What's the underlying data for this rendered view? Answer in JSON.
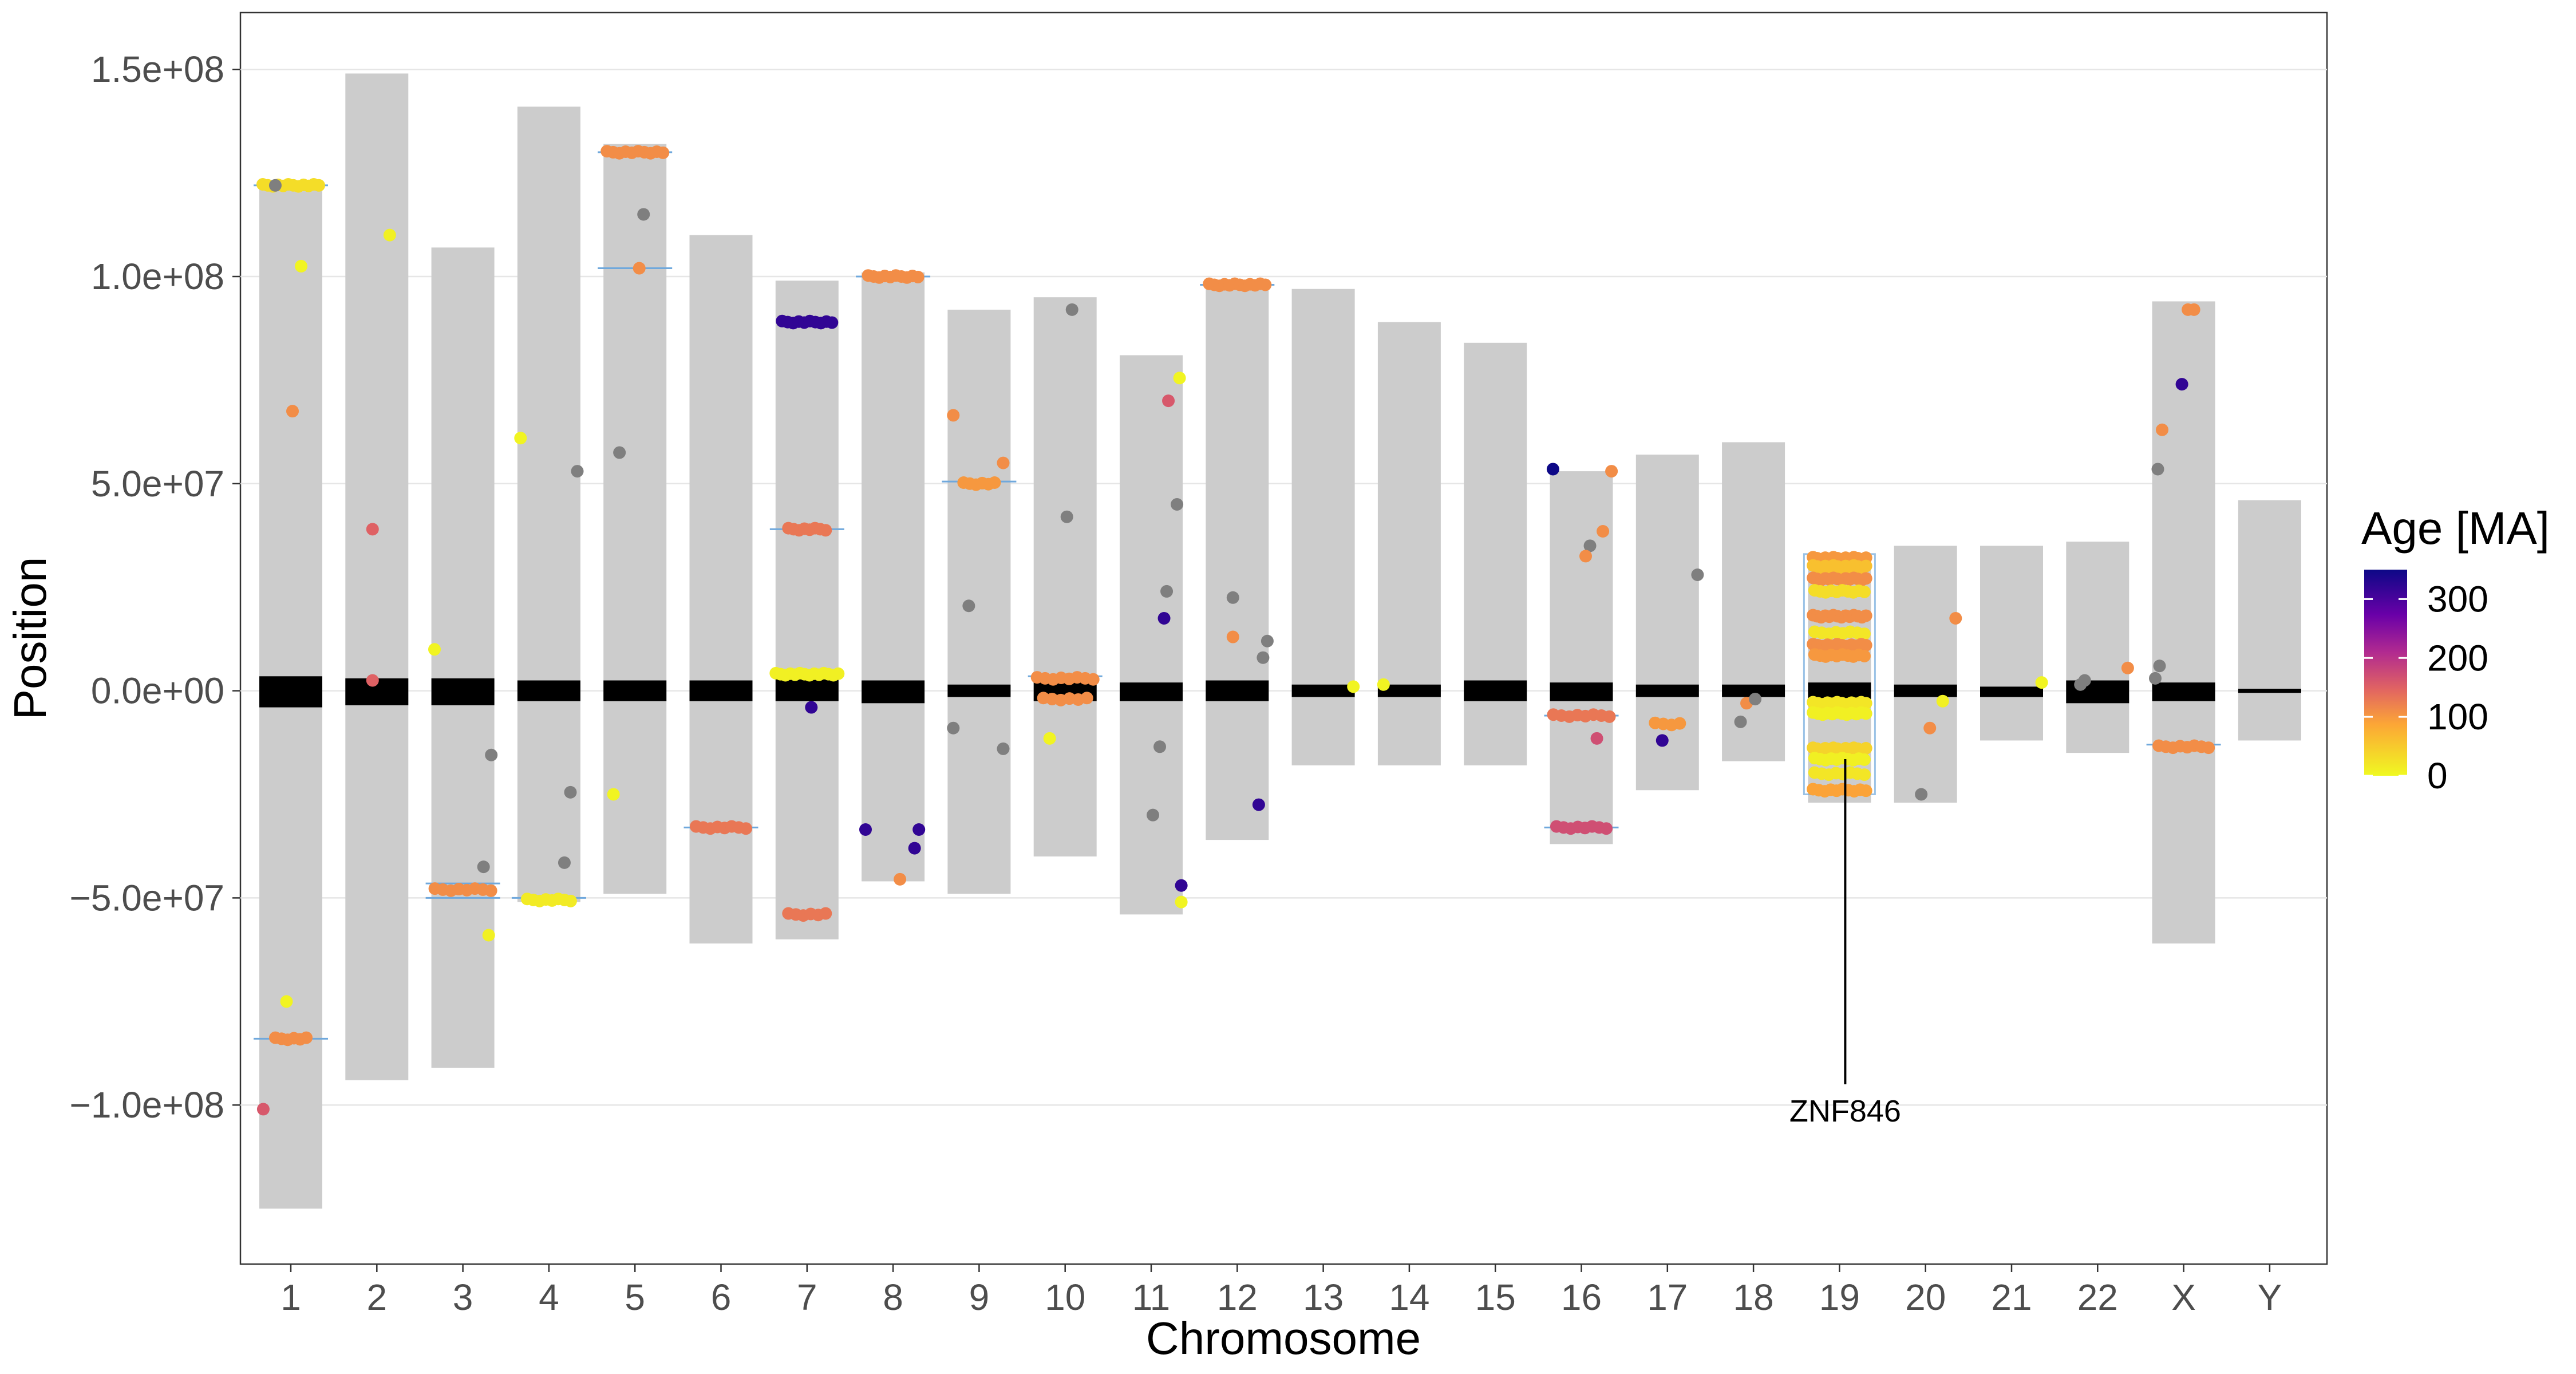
{
  "chart_data": {
    "type": "scatter",
    "xlabel": "Chromosome",
    "ylabel": "Position",
    "ylim": [
      -137000000,
      163000000
    ],
    "y_ticks": [
      150000000,
      100000000,
      50000000,
      0,
      -50000000,
      -100000000
    ],
    "y_tick_labels": [
      "1.5e+08",
      "1.0e+08",
      "5.0e+07",
      "0.0e+00",
      "−5.0e+07",
      "−1.0e+08"
    ],
    "grid": true,
    "legend": {
      "title": "Age [MA]",
      "position": "right",
      "ticks": [
        300,
        200,
        100,
        0
      ],
      "range": [
        0,
        350
      ]
    },
    "categories": [
      "1",
      "2",
      "3",
      "4",
      "5",
      "6",
      "7",
      "8",
      "9",
      "10",
      "11",
      "12",
      "13",
      "14",
      "15",
      "16",
      "17",
      "18",
      "19",
      "20",
      "21",
      "22",
      "X",
      "Y"
    ],
    "chromosomes": [
      {
        "name": "1",
        "top": 123000000,
        "bottom": -125000000,
        "cen_top": 3500000,
        "cen_bottom": -4000000
      },
      {
        "name": "2",
        "top": 149000000,
        "bottom": -94000000,
        "cen_top": 3000000,
        "cen_bottom": -3500000
      },
      {
        "name": "3",
        "top": 107000000,
        "bottom": -91000000,
        "cen_top": 3000000,
        "cen_bottom": -3500000
      },
      {
        "name": "4",
        "top": 141000000,
        "bottom": -51000000,
        "cen_top": 2500000,
        "cen_bottom": -2500000
      },
      {
        "name": "5",
        "top": 132000000,
        "bottom": -49000000,
        "cen_top": 2500000,
        "cen_bottom": -2500000
      },
      {
        "name": "6",
        "top": 110000000,
        "bottom": -61000000,
        "cen_top": 2500000,
        "cen_bottom": -2500000
      },
      {
        "name": "7",
        "top": 99000000,
        "bottom": -60000000,
        "cen_top": 3000000,
        "cen_bottom": -2500000
      },
      {
        "name": "8",
        "top": 101000000,
        "bottom": -46000000,
        "cen_top": 2500000,
        "cen_bottom": -3000000
      },
      {
        "name": "9",
        "top": 92000000,
        "bottom": -49000000,
        "cen_top": 1500000,
        "cen_bottom": -1500000
      },
      {
        "name": "10",
        "top": 95000000,
        "bottom": -40000000,
        "cen_top": 2000000,
        "cen_bottom": -2500000
      },
      {
        "name": "11",
        "top": 81000000,
        "bottom": -54000000,
        "cen_top": 2000000,
        "cen_bottom": -2500000
      },
      {
        "name": "12",
        "top": 98000000,
        "bottom": -36000000,
        "cen_top": 2500000,
        "cen_bottom": -2500000
      },
      {
        "name": "13",
        "top": 97000000,
        "bottom": -18000000,
        "cen_top": 1500000,
        "cen_bottom": -1500000
      },
      {
        "name": "14",
        "top": 89000000,
        "bottom": -18000000,
        "cen_top": 1500000,
        "cen_bottom": -1500000
      },
      {
        "name": "15",
        "top": 84000000,
        "bottom": -18000000,
        "cen_top": 2500000,
        "cen_bottom": -2500000
      },
      {
        "name": "16",
        "top": 53000000,
        "bottom": -37000000,
        "cen_top": 2000000,
        "cen_bottom": -2500000
      },
      {
        "name": "17",
        "top": 57000000,
        "bottom": -24000000,
        "cen_top": 1500000,
        "cen_bottom": -1500000
      },
      {
        "name": "18",
        "top": 60000000,
        "bottom": -17000000,
        "cen_top": 1500000,
        "cen_bottom": -1500000
      },
      {
        "name": "19",
        "top": 33000000,
        "bottom": -27000000,
        "cen_top": 2000000,
        "cen_bottom": -2000000
      },
      {
        "name": "20",
        "top": 35000000,
        "bottom": -27000000,
        "cen_top": 1500000,
        "cen_bottom": -1500000
      },
      {
        "name": "21",
        "top": 35000000,
        "bottom": -12000000,
        "cen_top": 1000000,
        "cen_bottom": -1500000
      },
      {
        "name": "22",
        "top": 36000000,
        "bottom": -15000000,
        "cen_top": 2500000,
        "cen_bottom": -3000000
      },
      {
        "name": "X",
        "top": 94000000,
        "bottom": -61000000,
        "cen_top": 2000000,
        "cen_bottom": -2500000
      },
      {
        "name": "Y",
        "top": 46000000,
        "bottom": -12000000,
        "cen_top": 500000,
        "cen_bottom": -500000
      }
    ],
    "clusters": [
      {
        "chr": "1",
        "y": 122000000,
        "n": 12,
        "spread": 0.8,
        "age": 30
      },
      {
        "chr": "1",
        "y": -84000000,
        "n": 6,
        "spread": 0.4,
        "age": 110
      },
      {
        "chr": "3",
        "y": -48000000,
        "n": 8,
        "spread": 0.8,
        "age": 110
      },
      {
        "chr": "4",
        "y": -50500000,
        "n": 8,
        "spread": 0.6,
        "age": 15
      },
      {
        "chr": "5",
        "y": 130000000,
        "n": 10,
        "spread": 0.8,
        "age": 110
      },
      {
        "chr": "6",
        "y": -33000000,
        "n": 8,
        "spread": 0.7,
        "age": 130
      },
      {
        "chr": "7",
        "y": 89000000,
        "n": 10,
        "spread": 0.7,
        "age": 320
      },
      {
        "chr": "7",
        "y": 39000000,
        "n": 8,
        "spread": 0.5,
        "age": 130
      },
      {
        "chr": "7",
        "y": 4000000,
        "n": 14,
        "spread": 0.9,
        "age": 10
      },
      {
        "chr": "7",
        "y": -54000000,
        "n": 6,
        "spread": 0.5,
        "age": 130
      },
      {
        "chr": "8",
        "y": 100000000,
        "n": 10,
        "spread": 0.7,
        "age": 110
      },
      {
        "chr": "9",
        "y": 50000000,
        "n": 6,
        "spread": 0.4,
        "age": 100
      },
      {
        "chr": "10",
        "y": 3000000,
        "n": 8,
        "spread": 0.8,
        "age": 110
      },
      {
        "chr": "10",
        "y": -2000000,
        "n": 6,
        "spread": 0.6,
        "age": 110
      },
      {
        "chr": "12",
        "y": 98000000,
        "n": 12,
        "spread": 0.8,
        "age": 110
      },
      {
        "chr": "16",
        "y": -6000000,
        "n": 8,
        "spread": 0.8,
        "age": 130
      },
      {
        "chr": "16",
        "y": -33000000,
        "n": 8,
        "spread": 0.7,
        "age": 170
      },
      {
        "chr": "17",
        "y": -8000000,
        "n": 4,
        "spread": 0.3,
        "age": 100
      },
      {
        "chr": "19",
        "y": 32000000,
        "n": 14,
        "spread": 0.75,
        "age": 100
      },
      {
        "chr": "19",
        "y": 30000000,
        "n": 14,
        "spread": 0.75,
        "age": 60
      },
      {
        "chr": "19",
        "y": 27000000,
        "n": 14,
        "spread": 0.75,
        "age": 110
      },
      {
        "chr": "19",
        "y": 24000000,
        "n": 10,
        "spread": 0.7,
        "age": 30
      },
      {
        "chr": "19",
        "y": 18000000,
        "n": 14,
        "spread": 0.75,
        "age": 110
      },
      {
        "chr": "19",
        "y": 14000000,
        "n": 8,
        "spread": 0.7,
        "age": 20
      },
      {
        "chr": "19",
        "y": 11000000,
        "n": 12,
        "spread": 0.75,
        "age": 110
      },
      {
        "chr": "19",
        "y": 8500000,
        "n": 10,
        "spread": 0.7,
        "age": 100
      },
      {
        "chr": "19",
        "y": -3000000,
        "n": 12,
        "spread": 0.75,
        "age": 20
      },
      {
        "chr": "19",
        "y": -5500000,
        "n": 12,
        "spread": 0.75,
        "age": 10
      },
      {
        "chr": "19",
        "y": -14000000,
        "n": 14,
        "spread": 0.75,
        "age": 40
      },
      {
        "chr": "19",
        "y": -16500000,
        "n": 10,
        "spread": 0.7,
        "age": 10
      },
      {
        "chr": "19",
        "y": -20000000,
        "n": 8,
        "spread": 0.7,
        "age": 20
      },
      {
        "chr": "19",
        "y": -24000000,
        "n": 10,
        "spread": 0.75,
        "age": 90
      },
      {
        "chr": "X",
        "y": -13500000,
        "n": 8,
        "spread": 0.7,
        "age": 110
      }
    ],
    "points": [
      {
        "x": "1",
        "dx": -0.18,
        "y": 122000000,
        "age": null
      },
      {
        "x": "1",
        "dx": 0.12,
        "y": 102500000,
        "age": 5
      },
      {
        "x": "1",
        "dx": 0.02,
        "y": 67500000,
        "age": 110
      },
      {
        "x": "1",
        "dx": -0.05,
        "y": -75000000,
        "age": 5
      },
      {
        "x": "1",
        "dx": -0.32,
        "y": -101000000,
        "age": 160
      },
      {
        "x": "2",
        "dx": -0.05,
        "y": 39000000,
        "age": 150
      },
      {
        "x": "2",
        "dx": 0.15,
        "y": 110000000,
        "age": 10
      },
      {
        "x": "2",
        "dx": -0.05,
        "y": 2500000,
        "age": 150
      },
      {
        "x": "3",
        "dx": -0.33,
        "y": 10000000,
        "age": 5
      },
      {
        "x": "3",
        "dx": 0.33,
        "y": -15500000,
        "age": null
      },
      {
        "x": "3",
        "dx": 0.24,
        "y": -42500000,
        "age": null
      },
      {
        "x": "3",
        "dx": 0.3,
        "y": -59000000,
        "age": 10
      },
      {
        "x": "4",
        "dx": -0.33,
        "y": 61000000,
        "age": 5
      },
      {
        "x": "4",
        "dx": 0.33,
        "y": 53000000,
        "age": null
      },
      {
        "x": "4",
        "dx": 0.25,
        "y": -24500000,
        "age": null
      },
      {
        "x": "4",
        "dx": 0.18,
        "y": -41500000,
        "age": null
      },
      {
        "x": "5",
        "dx": -0.18,
        "y": 57500000,
        "age": null
      },
      {
        "x": "5",
        "dx": 0.1,
        "y": 115000000,
        "age": null
      },
      {
        "x": "5",
        "dx": 0.05,
        "y": 102000000,
        "age": 110
      },
      {
        "x": "5",
        "dx": -0.25,
        "y": -25000000,
        "age": 5
      },
      {
        "x": "7",
        "dx": 0.05,
        "y": -4000000,
        "age": 320
      },
      {
        "x": "8",
        "dx": -0.32,
        "y": -33500000,
        "age": 320
      },
      {
        "x": "8",
        "dx": 0.25,
        "y": -38000000,
        "age": 320
      },
      {
        "x": "8",
        "dx": 0.3,
        "y": -33500000,
        "age": 320
      },
      {
        "x": "8",
        "dx": 0.08,
        "y": -45500000,
        "age": 110
      },
      {
        "x": "9",
        "dx": -0.3,
        "y": 66500000,
        "age": 110
      },
      {
        "x": "9",
        "dx": -0.12,
        "y": 20500000,
        "age": null
      },
      {
        "x": "9",
        "dx": -0.3,
        "y": -9000000,
        "age": null
      },
      {
        "x": "9",
        "dx": 0.28,
        "y": -14000000,
        "age": null
      },
      {
        "x": "9",
        "dx": 0.28,
        "y": 55000000,
        "age": 110
      },
      {
        "x": "10",
        "dx": 0.08,
        "y": 92000000,
        "age": null
      },
      {
        "x": "10",
        "dx": 0.02,
        "y": 42000000,
        "age": null
      },
      {
        "x": "10",
        "dx": -0.18,
        "y": -11500000,
        "age": 5
      },
      {
        "x": "11",
        "dx": 0.33,
        "y": 75500000,
        "age": 5
      },
      {
        "x": "11",
        "dx": 0.2,
        "y": 70000000,
        "age": 160
      },
      {
        "x": "11",
        "dx": 0.3,
        "y": 45000000,
        "age": null
      },
      {
        "x": "11",
        "dx": 0.18,
        "y": 24000000,
        "age": null
      },
      {
        "x": "11",
        "dx": 0.15,
        "y": 17500000,
        "age": 320
      },
      {
        "x": "11",
        "dx": 0.1,
        "y": -13500000,
        "age": null
      },
      {
        "x": "11",
        "dx": 0.02,
        "y": -30000000,
        "age": null
      },
      {
        "x": "11",
        "dx": 0.35,
        "y": -47000000,
        "age": 320
      },
      {
        "x": "11",
        "dx": 0.35,
        "y": -51000000,
        "age": 5
      },
      {
        "x": "12",
        "dx": -0.05,
        "y": 22500000,
        "age": null
      },
      {
        "x": "12",
        "dx": -0.05,
        "y": 13000000,
        "age": 110
      },
      {
        "x": "12",
        "dx": 0.35,
        "y": 12000000,
        "age": null
      },
      {
        "x": "12",
        "dx": 0.3,
        "y": 8000000,
        "age": null
      },
      {
        "x": "12",
        "dx": 0.25,
        "y": -27500000,
        "age": 320
      },
      {
        "x": "13",
        "dx": 0.35,
        "y": 1000000,
        "age": 5
      },
      {
        "x": "14",
        "dx": -0.3,
        "y": 1500000,
        "age": 5
      },
      {
        "x": "16",
        "dx": -0.33,
        "y": 53500000,
        "age": 350
      },
      {
        "x": "16",
        "dx": 0.35,
        "y": 53000000,
        "age": 110
      },
      {
        "x": "16",
        "dx": 0.25,
        "y": 38500000,
        "age": 110
      },
      {
        "x": "16",
        "dx": 0.1,
        "y": 35000000,
        "age": null
      },
      {
        "x": "16",
        "dx": 0.05,
        "y": 32500000,
        "age": 110
      },
      {
        "x": "16",
        "dx": 0.18,
        "y": -11500000,
        "age": 170
      },
      {
        "x": "17",
        "dx": 0.35,
        "y": 28000000,
        "age": null
      },
      {
        "x": "17",
        "dx": -0.06,
        "y": -12000000,
        "age": 320
      },
      {
        "x": "18",
        "dx": -0.15,
        "y": -7500000,
        "age": null
      },
      {
        "x": "18",
        "dx": -0.08,
        "y": -3000000,
        "age": 110
      },
      {
        "x": "18",
        "dx": 0.02,
        "y": -2000000,
        "age": null
      },
      {
        "x": "20",
        "dx": 0.35,
        "y": 17500000,
        "age": 110
      },
      {
        "x": "20",
        "dx": 0.2,
        "y": -2500000,
        "age": 10
      },
      {
        "x": "20",
        "dx": 0.05,
        "y": -9000000,
        "age": 110
      },
      {
        "x": "20",
        "dx": -0.05,
        "y": -25000000,
        "age": null
      },
      {
        "x": "21",
        "dx": 0.35,
        "y": 2000000,
        "age": 5
      },
      {
        "x": "22",
        "dx": 0.35,
        "y": 5500000,
        "age": 110
      },
      {
        "x": "22",
        "dx": -0.2,
        "y": 1500000,
        "age": null
      },
      {
        "x": "22",
        "dx": -0.15,
        "y": 2500000,
        "age": null
      },
      {
        "x": "X",
        "dx": -0.33,
        "y": 3000000,
        "age": null
      },
      {
        "x": "X",
        "dx": -0.28,
        "y": 6000000,
        "age": null
      },
      {
        "x": "X",
        "dx": -0.3,
        "y": 53500000,
        "age": null
      },
      {
        "x": "X",
        "dx": -0.25,
        "y": 63000000,
        "age": 110
      },
      {
        "x": "X",
        "dx": -0.02,
        "y": 74000000,
        "age": 320
      },
      {
        "x": "X",
        "dx": 0.05,
        "y": 92000000,
        "age": 110
      },
      {
        "x": "X",
        "dx": 0.12,
        "y": 92000000,
        "age": 110
      }
    ],
    "gene_lines": [
      {
        "chr": "1",
        "y": 122000000
      },
      {
        "chr": "1",
        "y": -84000000
      },
      {
        "chr": "3",
        "y": -46500000
      },
      {
        "chr": "3",
        "y": -50000000
      },
      {
        "chr": "4",
        "y": -50000000
      },
      {
        "chr": "5",
        "y": 130000000
      },
      {
        "chr": "5",
        "y": 102000000
      },
      {
        "chr": "6",
        "y": -33000000
      },
      {
        "chr": "7",
        "y": 39000000
      },
      {
        "chr": "8",
        "y": 100000000
      },
      {
        "chr": "9",
        "y": 50500000
      },
      {
        "chr": "10",
        "y": 3500000
      },
      {
        "chr": "12",
        "y": 98000000
      },
      {
        "chr": "16",
        "y": -6000000
      },
      {
        "chr": "16",
        "y": -33000000
      },
      {
        "chr": "X",
        "y": -13000000
      }
    ],
    "annotations": [
      {
        "text": "ZNF846",
        "chr": "19",
        "y_from": -16500000,
        "y_to": -95000000
      }
    ]
  }
}
